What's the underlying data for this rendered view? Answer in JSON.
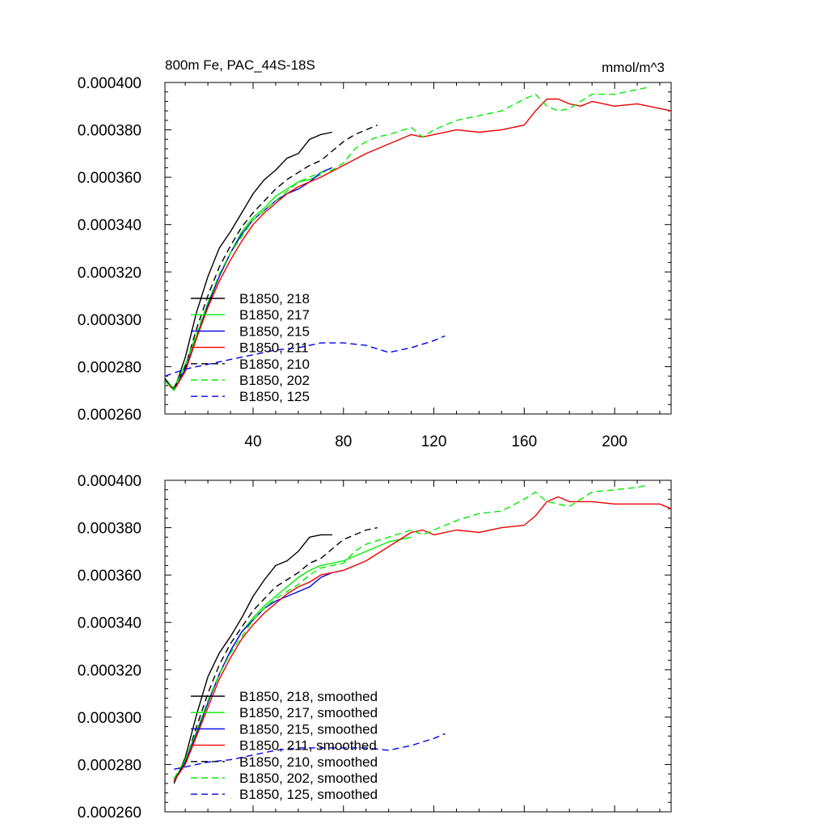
{
  "chart_data": [
    {
      "type": "line",
      "title": "800m Fe, PAC_44S-18S",
      "units": "mmol/m^3",
      "xlabel": "",
      "ylabel": "",
      "xlim": [
        1,
        225
      ],
      "ylim": [
        0.00026,
        0.0004
      ],
      "x_ticks": [
        "40",
        "80",
        "120",
        "160",
        "200"
      ],
      "y_ticks": [
        "0.000260",
        "0.000280",
        "0.000300",
        "0.000320",
        "0.000340",
        "0.000360",
        "0.000380",
        "0.000400"
      ],
      "legend_position": "bottom-left",
      "grid": false,
      "series": [
        {
          "name": "B1850, 218",
          "color": "#000000",
          "dash": "solid",
          "x": [
            1,
            5,
            10,
            15,
            20,
            25,
            30,
            35,
            40,
            45,
            50,
            55,
            60,
            65,
            70,
            75
          ],
          "y": [
            0.000275,
            0.00027,
            0.000284,
            0.000303,
            0.000318,
            0.00033,
            0.000337,
            0.000345,
            0.000353,
            0.000359,
            0.000363,
            0.000368,
            0.00037,
            0.000376,
            0.000378,
            0.000379
          ]
        },
        {
          "name": "B1850, 217",
          "color": "#00ee00",
          "dash": "solid",
          "x": [
            1,
            5,
            10,
            15,
            20,
            25,
            30,
            35,
            40,
            45,
            50,
            55,
            60,
            65,
            70
          ],
          "y": [
            0.000274,
            0.000271,
            0.000281,
            0.000293,
            0.000307,
            0.000318,
            0.000328,
            0.000337,
            0.000343,
            0.000347,
            0.000352,
            0.000355,
            0.000358,
            0.000359,
            0.000361
          ]
        },
        {
          "name": "B1850, 215",
          "color": "#0000ee",
          "dash": "solid",
          "x": [
            1,
            5,
            10,
            15,
            20,
            25,
            30,
            35,
            40,
            45,
            50,
            55,
            60,
            65,
            70,
            75
          ],
          "y": [
            0.000274,
            0.00027,
            0.000279,
            0.000292,
            0.000306,
            0.000318,
            0.000328,
            0.000336,
            0.000342,
            0.000346,
            0.00035,
            0.000353,
            0.000355,
            0.000358,
            0.000362,
            0.000364
          ]
        },
        {
          "name": "B1850, 211",
          "color": "#ee0000",
          "dash": "solid",
          "x": [
            1,
            5,
            10,
            15,
            20,
            25,
            30,
            35,
            40,
            45,
            50,
            55,
            60,
            65,
            70,
            80,
            90,
            100,
            110,
            115,
            120,
            130,
            140,
            150,
            155,
            160,
            165,
            170,
            175,
            180,
            185,
            190,
            200,
            210,
            220,
            225
          ],
          "y": [
            0.000274,
            0.00027,
            0.000278,
            0.000292,
            0.000305,
            0.000316,
            0.000325,
            0.000333,
            0.00034,
            0.000345,
            0.000349,
            0.000353,
            0.000356,
            0.000358,
            0.00036,
            0.000365,
            0.00037,
            0.000374,
            0.000378,
            0.000377,
            0.000378,
            0.00038,
            0.000379,
            0.00038,
            0.000381,
            0.000382,
            0.000388,
            0.000393,
            0.000393,
            0.000391,
            0.00039,
            0.000392,
            0.00039,
            0.000391,
            0.000389,
            0.000388
          ]
        },
        {
          "name": "B1850, 210",
          "color": "#000000",
          "dash": "dashed",
          "x": [
            1,
            5,
            10,
            15,
            20,
            25,
            30,
            35,
            40,
            45,
            50,
            55,
            60,
            65,
            70,
            75,
            80,
            85,
            90,
            95
          ],
          "y": [
            0.000274,
            0.000271,
            0.00028,
            0.000296,
            0.00031,
            0.000322,
            0.000331,
            0.000339,
            0.000345,
            0.00035,
            0.000355,
            0.000359,
            0.000362,
            0.000365,
            0.000367,
            0.000371,
            0.000375,
            0.000378,
            0.00038,
            0.000382
          ]
        },
        {
          "name": "B1850, 202",
          "color": "#00ee00",
          "dash": "dashed",
          "x": [
            1,
            5,
            10,
            15,
            20,
            25,
            30,
            35,
            40,
            45,
            50,
            55,
            60,
            65,
            70,
            75,
            80,
            85,
            90,
            95,
            100,
            110,
            115,
            120,
            130,
            140,
            150,
            160,
            165,
            170,
            175,
            180,
            190,
            200,
            210,
            215
          ],
          "y": [
            0.000274,
            0.00027,
            0.000281,
            0.000294,
            0.000307,
            0.000319,
            0.000328,
            0.000335,
            0.000342,
            0.000346,
            0.00035,
            0.000354,
            0.000358,
            0.00036,
            0.000362,
            0.000363,
            0.000366,
            0.000372,
            0.000375,
            0.000377,
            0.000378,
            0.000381,
            0.000377,
            0.00038,
            0.000384,
            0.000386,
            0.000388,
            0.000393,
            0.000395,
            0.00039,
            0.000388,
            0.000389,
            0.000395,
            0.000395,
            0.000397,
            0.000398
          ]
        },
        {
          "name": "B1850, 125",
          "color": "#0000ee",
          "dash": "dashed",
          "x": [
            1,
            10,
            20,
            30,
            40,
            50,
            60,
            70,
            80,
            90,
            100,
            110,
            120,
            125
          ],
          "y": [
            0.000276,
            0.000279,
            0.000281,
            0.000283,
            0.000285,
            0.000287,
            0.000288,
            0.00029,
            0.00029,
            0.000289,
            0.000286,
            0.000288,
            0.000291,
            0.000293
          ]
        }
      ]
    },
    {
      "type": "line",
      "title": "",
      "units": "",
      "xlabel": "",
      "ylabel": "",
      "xlim": [
        1,
        225
      ],
      "ylim": [
        0.00026,
        0.0004
      ],
      "x_ticks": [],
      "y_ticks": [
        "0.000260",
        "0.000280",
        "0.000300",
        "0.000320",
        "0.000340",
        "0.000360",
        "0.000380",
        "0.000400"
      ],
      "legend_position": "bottom-left",
      "grid": false,
      "series": [
        {
          "name": "B1850, 218, smoothed",
          "color": "#000000",
          "dash": "solid",
          "x": [
            5,
            10,
            15,
            20,
            25,
            30,
            35,
            40,
            45,
            50,
            55,
            60,
            65,
            70,
            75
          ],
          "y": [
            0.000272,
            0.000283,
            0.000301,
            0.000317,
            0.000327,
            0.000334,
            0.000342,
            0.000351,
            0.000358,
            0.000364,
            0.000366,
            0.00037,
            0.000376,
            0.000377,
            0.000377
          ]
        },
        {
          "name": "B1850, 217, smoothed",
          "color": "#00ee00",
          "dash": "solid",
          "x": [
            5,
            10,
            15,
            20,
            25,
            30,
            35,
            40,
            45,
            50,
            55,
            60,
            65,
            70,
            75,
            80,
            90,
            100,
            110
          ],
          "y": [
            0.000273,
            0.000282,
            0.000294,
            0.000306,
            0.000318,
            0.000328,
            0.000336,
            0.000342,
            0.000347,
            0.000351,
            0.000355,
            0.000359,
            0.000362,
            0.000364,
            0.000365,
            0.000366,
            0.00037,
            0.000374,
            0.000376
          ]
        },
        {
          "name": "B1850, 215, smoothed",
          "color": "#0000ee",
          "dash": "solid",
          "x": [
            5,
            10,
            15,
            20,
            25,
            30,
            35,
            40,
            45,
            50,
            55,
            60,
            65,
            70,
            75
          ],
          "y": [
            0.000273,
            0.000281,
            0.000293,
            0.000306,
            0.000318,
            0.000328,
            0.000336,
            0.000341,
            0.000346,
            0.000349,
            0.000351,
            0.000353,
            0.000355,
            0.000359,
            0.000361
          ]
        },
        {
          "name": "B1850, 211, smoothed",
          "color": "#ee0000",
          "dash": "solid",
          "x": [
            5,
            10,
            15,
            20,
            25,
            30,
            35,
            40,
            45,
            50,
            55,
            60,
            65,
            70,
            75,
            80,
            90,
            100,
            110,
            115,
            120,
            130,
            140,
            150,
            160,
            165,
            170,
            175,
            180,
            190,
            200,
            210,
            220,
            225
          ],
          "y": [
            0.000273,
            0.00028,
            0.000292,
            0.000304,
            0.000316,
            0.000325,
            0.000333,
            0.000339,
            0.000344,
            0.000348,
            0.000352,
            0.000355,
            0.000357,
            0.00036,
            0.000361,
            0.000362,
            0.000366,
            0.000372,
            0.000378,
            0.000379,
            0.000377,
            0.000379,
            0.000378,
            0.00038,
            0.000381,
            0.000385,
            0.000391,
            0.000393,
            0.000391,
            0.000391,
            0.00039,
            0.00039,
            0.00039,
            0.000388
          ]
        },
        {
          "name": "B1850, 210, smoothed",
          "color": "#000000",
          "dash": "dashed",
          "x": [
            5,
            10,
            15,
            20,
            25,
            30,
            35,
            40,
            45,
            50,
            55,
            60,
            65,
            70,
            75,
            80,
            85,
            90,
            95
          ],
          "y": [
            0.000274,
            0.000281,
            0.000296,
            0.00031,
            0.000322,
            0.000331,
            0.000338,
            0.000345,
            0.00035,
            0.000355,
            0.000358,
            0.000361,
            0.000365,
            0.000367,
            0.000371,
            0.000375,
            0.000377,
            0.000379,
            0.00038
          ]
        },
        {
          "name": "B1850, 202, smoothed",
          "color": "#00ee00",
          "dash": "dashed",
          "x": [
            5,
            10,
            15,
            20,
            25,
            30,
            35,
            40,
            45,
            50,
            55,
            60,
            65,
            70,
            75,
            80,
            85,
            90,
            100,
            110,
            115,
            120,
            130,
            140,
            150,
            160,
            165,
            170,
            180,
            190,
            200,
            210,
            215
          ],
          "y": [
            0.000274,
            0.000282,
            0.000294,
            0.000307,
            0.000318,
            0.000327,
            0.000334,
            0.000341,
            0.000346,
            0.00035,
            0.000353,
            0.000356,
            0.00036,
            0.000363,
            0.000364,
            0.000365,
            0.00037,
            0.000373,
            0.000376,
            0.000379,
            0.000377,
            0.000379,
            0.000383,
            0.000386,
            0.000387,
            0.000392,
            0.000395,
            0.000391,
            0.000389,
            0.000395,
            0.000396,
            0.000397,
            0.000398
          ]
        },
        {
          "name": "B1850, 125, smoothed",
          "color": "#0000ee",
          "dash": "dashed",
          "x": [
            5,
            10,
            20,
            30,
            40,
            50,
            60,
            70,
            80,
            90,
            100,
            110,
            120,
            125
          ],
          "y": [
            0.000278,
            0.000279,
            0.000281,
            0.000282,
            0.000284,
            0.000286,
            0.000287,
            0.000287,
            0.000287,
            0.000287,
            0.000286,
            0.000288,
            0.000291,
            0.000293
          ]
        }
      ]
    }
  ]
}
